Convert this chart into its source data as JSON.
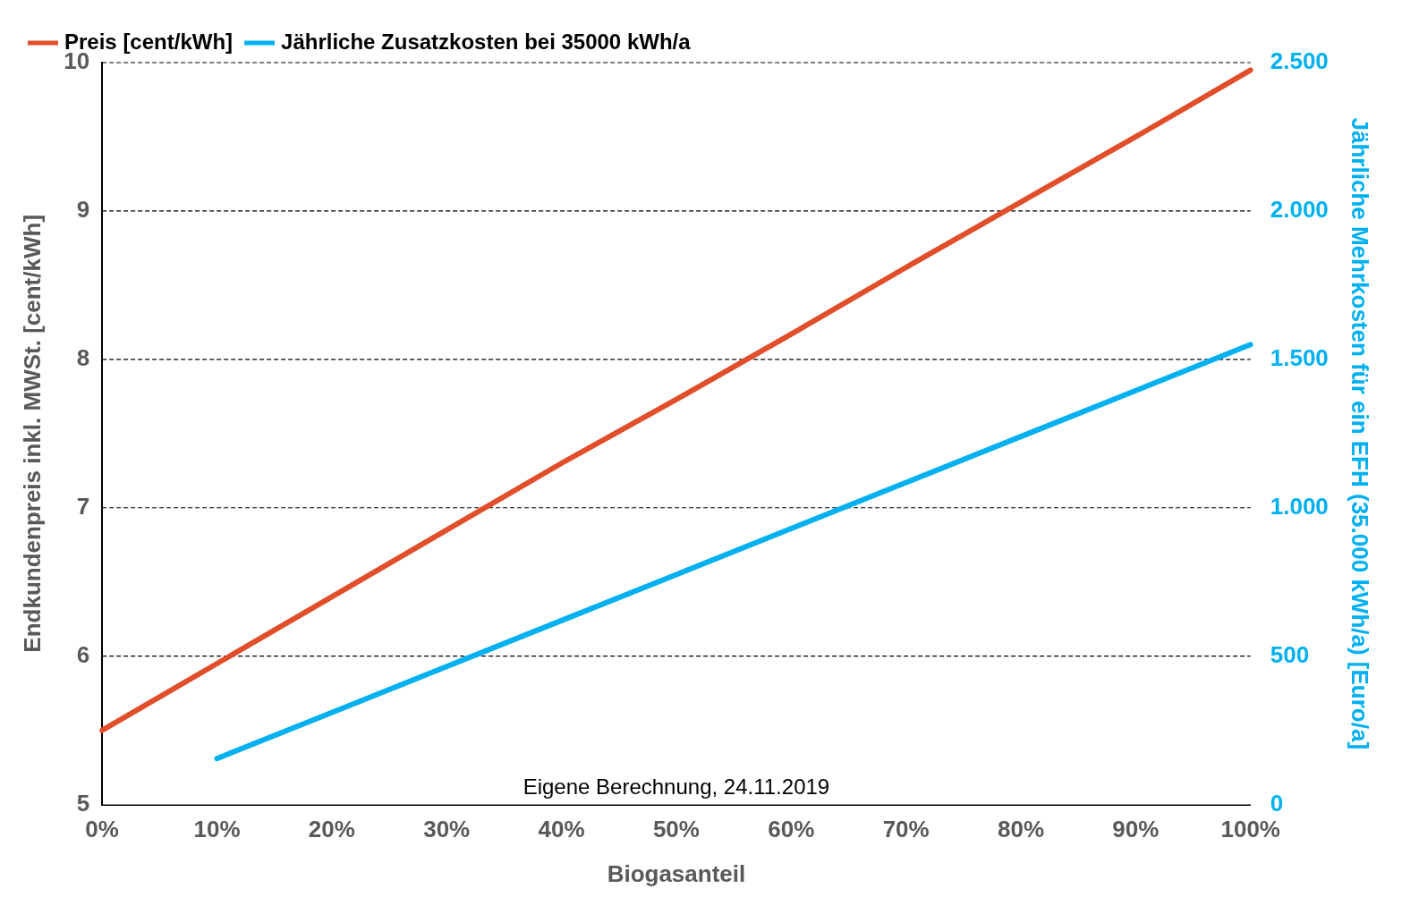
{
  "chart_data": {
    "type": "line",
    "xlabel": "Biogasanteil",
    "ylabel": "Endkundenpreis inkl. MWSt. [cent/kWh]",
    "y2label": "Jährliche Mehrkosten für ein EFH (35.000 kWh/a) [Euro/a]",
    "categories": [
      "0%",
      "10%",
      "20%",
      "30%",
      "40%",
      "50%",
      "60%",
      "70%",
      "80%",
      "90%",
      "100%"
    ],
    "series": [
      {
        "name": "Preis [cent/kWh]",
        "color": "#e04e2a",
        "values": [
          5.5,
          5.95,
          6.4,
          6.85,
          7.3,
          7.73,
          8.17,
          8.62,
          9.06,
          9.5,
          9.95
        ]
      },
      {
        "name": "Jährliche Zusatzkosten bei 35000 kWh/a",
        "color": "#00b0f0",
        "axis": "y2",
        "values": [
          null,
          155,
          310,
          465,
          620,
          775,
          930,
          1085,
          1240,
          1395,
          1550
        ]
      }
    ],
    "ylim": [
      5,
      10
    ],
    "yticks": [
      5,
      6,
      7,
      8,
      9,
      10
    ],
    "y2lim": [
      0,
      2500
    ],
    "y2ticks": [
      0,
      {
        "value": 500,
        "label": "500"
      },
      {
        "value": 1000,
        "label": "1.000"
      },
      {
        "value": 1500,
        "label": "1.500"
      },
      {
        "value": 2000,
        "label": "2.000"
      },
      {
        "value": 2500,
        "label": "2.500"
      }
    ],
    "grid": "y",
    "legend": "top left",
    "marker": "none",
    "line_style": "solid",
    "annotations": [
      "Eigene Berechnung, 24.11.2019"
    ]
  }
}
